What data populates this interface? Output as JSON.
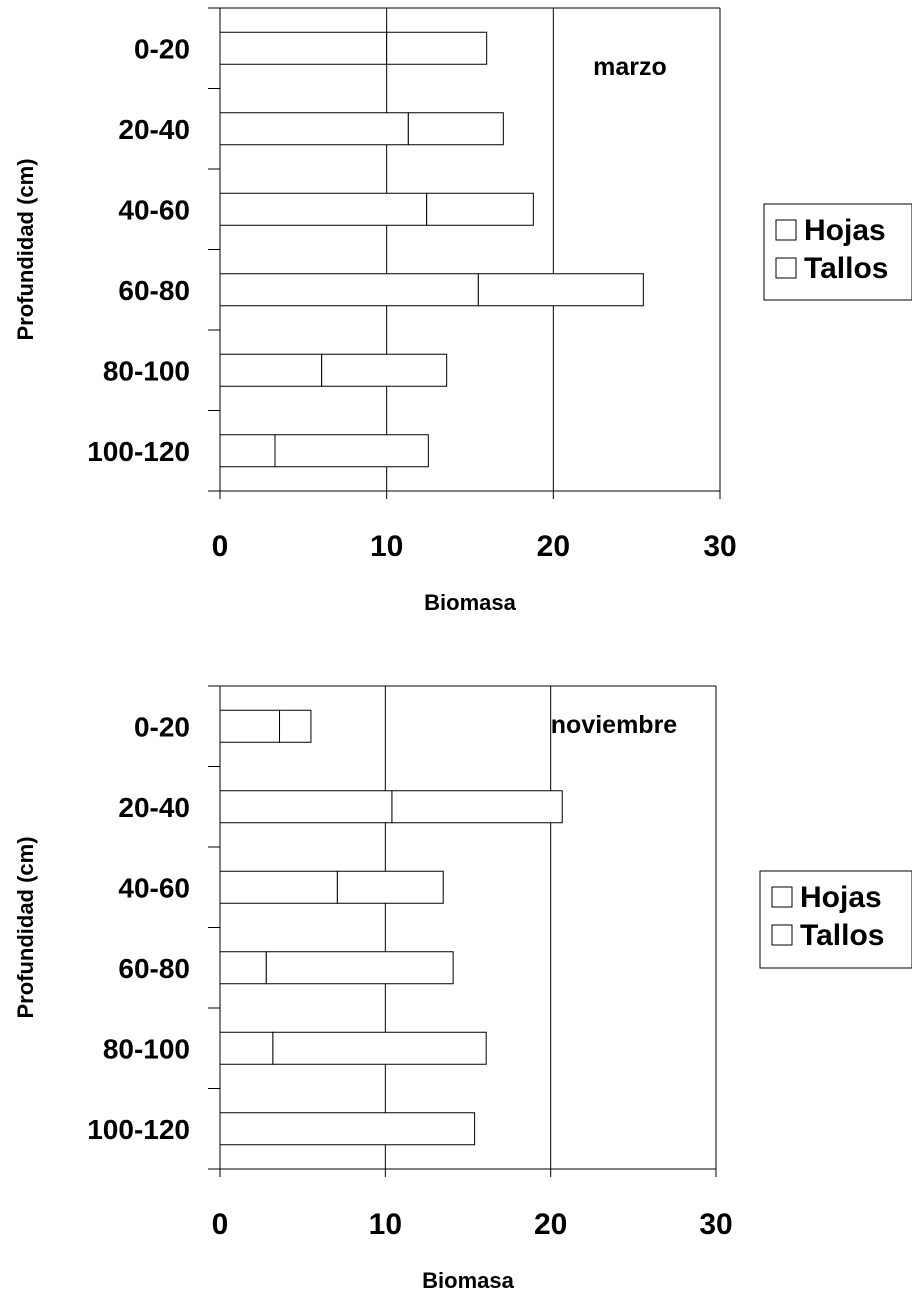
{
  "colors": {
    "background": "#ffffff",
    "bar_fill": "#ffffff",
    "stroke": "#000000"
  },
  "chart_data": [
    {
      "type": "bar",
      "orientation": "horizontal",
      "stacked": true,
      "annotation": "marzo",
      "xlabel": "Biomasa",
      "ylabel": "Profundidad (cm)",
      "xlim": [
        0,
        30
      ],
      "xticks": [
        "0",
        "10",
        "20",
        "30"
      ],
      "grid": "vertical",
      "legend_position": "right",
      "categories": [
        "0-20",
        "20-40",
        "40-60",
        "60-80",
        "80-100",
        "100-120"
      ],
      "series": [
        {
          "name": "Hojas",
          "values": [
            10.0,
            11.3,
            12.4,
            15.5,
            6.1,
            3.3
          ]
        },
        {
          "name": "Tallos",
          "values": [
            6.0,
            5.7,
            6.4,
            9.9,
            7.5,
            9.2
          ]
        }
      ]
    },
    {
      "type": "bar",
      "orientation": "horizontal",
      "stacked": true,
      "annotation": "noviembre",
      "xlabel": "Biomasa",
      "ylabel": "Profundidad (cm)",
      "xlim": [
        0,
        30
      ],
      "xticks": [
        "0",
        "10",
        "20",
        "30"
      ],
      "grid": "vertical",
      "legend_position": "right",
      "categories": [
        "0-20",
        "20-40",
        "40-60",
        "60-80",
        "80-100",
        "100-120"
      ],
      "series": [
        {
          "name": "Hojas",
          "values": [
            3.6,
            10.4,
            7.1,
            2.8,
            3.2,
            0
          ]
        },
        {
          "name": "Tallos",
          "values": [
            1.9,
            10.3,
            6.4,
            11.3,
            12.9,
            15.4
          ]
        }
      ]
    }
  ]
}
